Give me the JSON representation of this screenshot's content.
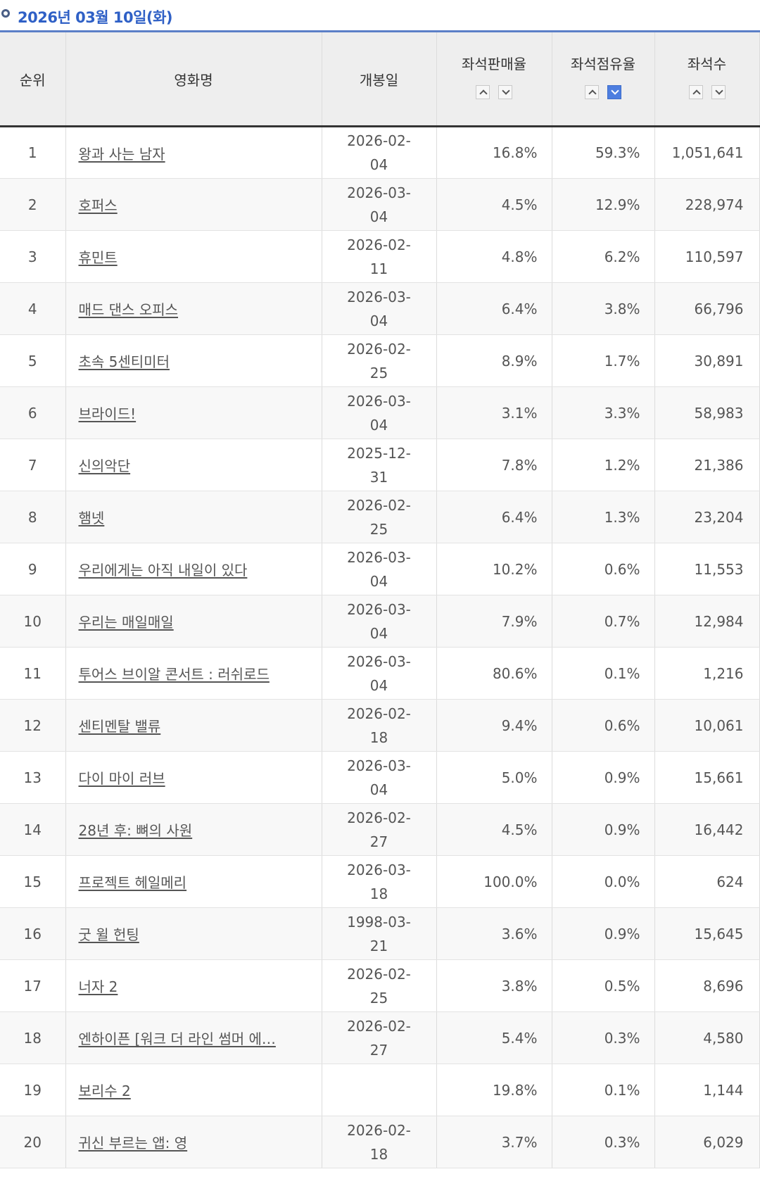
{
  "header": {
    "date_title": "2026년 03월 10일(화)"
  },
  "table": {
    "columns": [
      "순위",
      "영화명",
      "개봉일",
      "좌석판매율",
      "좌석점유율",
      "좌석수"
    ],
    "rows": [
      {
        "rank": "1",
        "title": "왕과 사는 남자",
        "release_a": "2026-02-",
        "release_b": "04",
        "sales_rate": "16.8%",
        "share": "59.3%",
        "seats": "1,051,641"
      },
      {
        "rank": "2",
        "title": "호퍼스",
        "release_a": "2026-03-",
        "release_b": "04",
        "sales_rate": "4.5%",
        "share": "12.9%",
        "seats": "228,974"
      },
      {
        "rank": "3",
        "title": "휴민트",
        "release_a": "2026-02-",
        "release_b": "11",
        "sales_rate": "4.8%",
        "share": "6.2%",
        "seats": "110,597"
      },
      {
        "rank": "4",
        "title": "매드 댄스 오피스",
        "release_a": "2026-03-",
        "release_b": "04",
        "sales_rate": "6.4%",
        "share": "3.8%",
        "seats": "66,796"
      },
      {
        "rank": "5",
        "title": "초속 5센티미터",
        "release_a": "2026-02-",
        "release_b": "25",
        "sales_rate": "8.9%",
        "share": "1.7%",
        "seats": "30,891"
      },
      {
        "rank": "6",
        "title": "브라이드!",
        "release_a": "2026-03-",
        "release_b": "04",
        "sales_rate": "3.1%",
        "share": "3.3%",
        "seats": "58,983"
      },
      {
        "rank": "7",
        "title": "신의악단",
        "release_a": "2025-12-",
        "release_b": "31",
        "sales_rate": "7.8%",
        "share": "1.2%",
        "seats": "21,386"
      },
      {
        "rank": "8",
        "title": "햄넷",
        "release_a": "2026-02-",
        "release_b": "25",
        "sales_rate": "6.4%",
        "share": "1.3%",
        "seats": "23,204"
      },
      {
        "rank": "9",
        "title": "우리에게는 아직 내일이 있다",
        "release_a": "2026-03-",
        "release_b": "04",
        "sales_rate": "10.2%",
        "share": "0.6%",
        "seats": "11,553"
      },
      {
        "rank": "10",
        "title": "우리는 매일매일",
        "release_a": "2026-03-",
        "release_b": "04",
        "sales_rate": "7.9%",
        "share": "0.7%",
        "seats": "12,984"
      },
      {
        "rank": "11",
        "title": "투어스 브이알 콘서트 : 러쉬로드",
        "release_a": "2026-03-",
        "release_b": "04",
        "sales_rate": "80.6%",
        "share": "0.1%",
        "seats": "1,216"
      },
      {
        "rank": "12",
        "title": "센티멘탈 밸류",
        "release_a": "2026-02-",
        "release_b": "18",
        "sales_rate": "9.4%",
        "share": "0.6%",
        "seats": "10,061"
      },
      {
        "rank": "13",
        "title": "다이 마이 러브",
        "release_a": "2026-03-",
        "release_b": "04",
        "sales_rate": "5.0%",
        "share": "0.9%",
        "seats": "15,661"
      },
      {
        "rank": "14",
        "title": "28년 후: 뼈의 사원",
        "release_a": "2026-02-",
        "release_b": "27",
        "sales_rate": "4.5%",
        "share": "0.9%",
        "seats": "16,442"
      },
      {
        "rank": "15",
        "title": "프로젝트 헤일메리",
        "release_a": "2026-03-",
        "release_b": "18",
        "sales_rate": "100.0%",
        "share": "0.0%",
        "seats": "624"
      },
      {
        "rank": "16",
        "title": "굿 윌 헌팅",
        "release_a": "1998-03-",
        "release_b": "21",
        "sales_rate": "3.6%",
        "share": "0.9%",
        "seats": "15,645"
      },
      {
        "rank": "17",
        "title": "너자 2",
        "release_a": "2026-02-",
        "release_b": "25",
        "sales_rate": "3.8%",
        "share": "0.5%",
        "seats": "8,696"
      },
      {
        "rank": "18",
        "title": "엔하이픈 [워크 더 라인 썸머 에…",
        "release_a": "2026-02-",
        "release_b": "27",
        "sales_rate": "5.4%",
        "share": "0.3%",
        "seats": "4,580"
      },
      {
        "rank": "19",
        "title": "보리수 2",
        "release_a": "",
        "release_b": "",
        "sales_rate": "19.8%",
        "share": "0.1%",
        "seats": "1,144"
      },
      {
        "rank": "20",
        "title": "귀신 부르는 앱: 영",
        "release_a": "2026-02-",
        "release_b": "18",
        "sales_rate": "3.7%",
        "share": "0.3%",
        "seats": "6,029"
      }
    ]
  },
  "colors": {
    "accent": "#2f60c6",
    "active_sort": "#4d7ee0"
  }
}
